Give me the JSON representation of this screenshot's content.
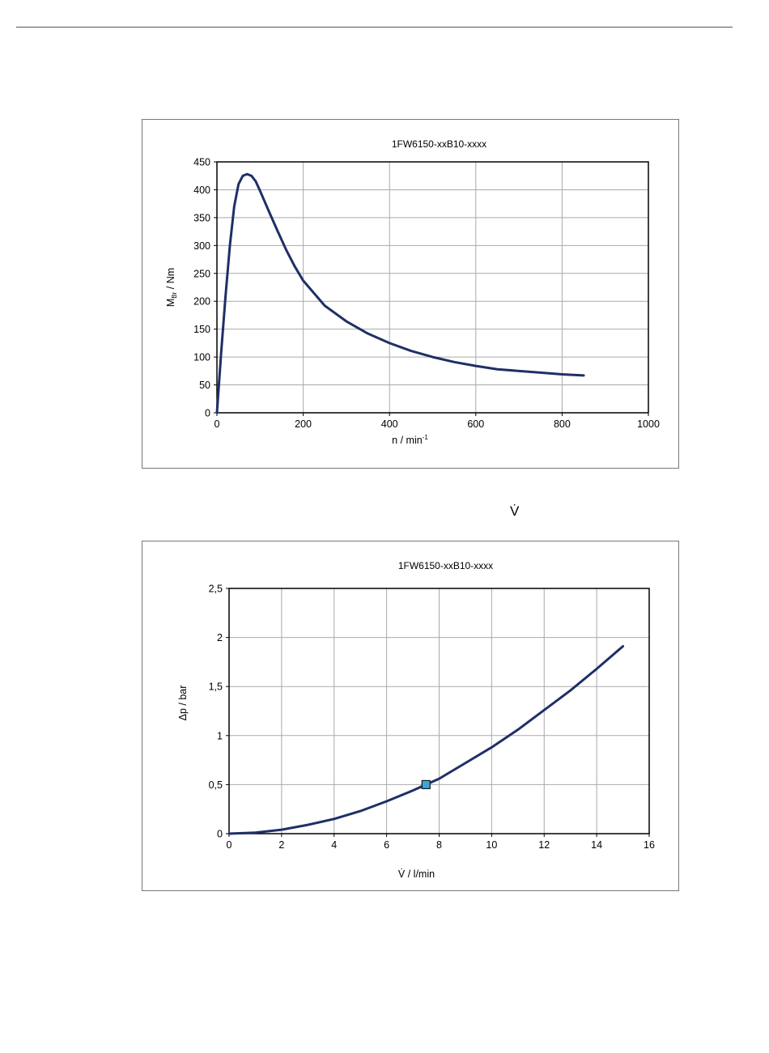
{
  "page": {
    "header_rule": true,
    "vdot_symbol": "V̇"
  },
  "chart_data": [
    {
      "type": "line",
      "title": "1FW6150-xxB10-xxxx",
      "xlabel_main": "n / min",
      "xlabel_sup": "-1",
      "ylabel_main": "M",
      "ylabel_sub": "Br",
      "ylabel_rest": " / Nm",
      "xlim": [
        0,
        1000
      ],
      "ylim": [
        0,
        450
      ],
      "xticks": [
        "0",
        "200",
        "400",
        "600",
        "800",
        "1000"
      ],
      "yticks": [
        "0",
        "50",
        "100",
        "150",
        "200",
        "250",
        "300",
        "350",
        "400",
        "450"
      ],
      "grid": true,
      "line_color": "#1f2f66",
      "series": [
        {
          "x": [
            0,
            5,
            10,
            20,
            30,
            40,
            50,
            60,
            70,
            80,
            90,
            100,
            120,
            140,
            160,
            180,
            200,
            250,
            300,
            350,
            400,
            450,
            500,
            550,
            600,
            650,
            700,
            750,
            800,
            850
          ],
          "y": [
            0,
            55,
            110,
            210,
            300,
            370,
            410,
            425,
            428,
            425,
            415,
            398,
            362,
            327,
            293,
            263,
            237,
            192,
            164,
            142,
            125,
            111,
            100,
            91,
            84,
            78,
            75,
            72,
            69,
            67
          ]
        }
      ]
    },
    {
      "type": "line",
      "title": "1FW6150-xxB10-xxxx",
      "xlabel": "V̇ / l/min",
      "ylabel": "Δp / bar",
      "xlim": [
        0,
        16
      ],
      "ylim": [
        0,
        2.5
      ],
      "xticks": [
        "0",
        "2",
        "4",
        "6",
        "8",
        "10",
        "12",
        "14",
        "16"
      ],
      "yticks": [
        "0",
        "0,5",
        "1",
        "1,5",
        "2",
        "2,5"
      ],
      "grid": true,
      "line_color": "#1f2f66",
      "marker_color": "#3aa6dd",
      "series": [
        {
          "x": [
            0,
            1,
            2,
            3,
            4,
            5,
            6,
            7,
            7.5,
            8,
            9,
            10,
            11,
            12,
            13,
            14,
            15
          ],
          "y": [
            0,
            0.01,
            0.04,
            0.09,
            0.15,
            0.23,
            0.33,
            0.44,
            0.5,
            0.56,
            0.72,
            0.88,
            1.06,
            1.26,
            1.46,
            1.68,
            1.91
          ]
        }
      ],
      "marker": {
        "x": 7.5,
        "y": 0.5
      }
    }
  ]
}
